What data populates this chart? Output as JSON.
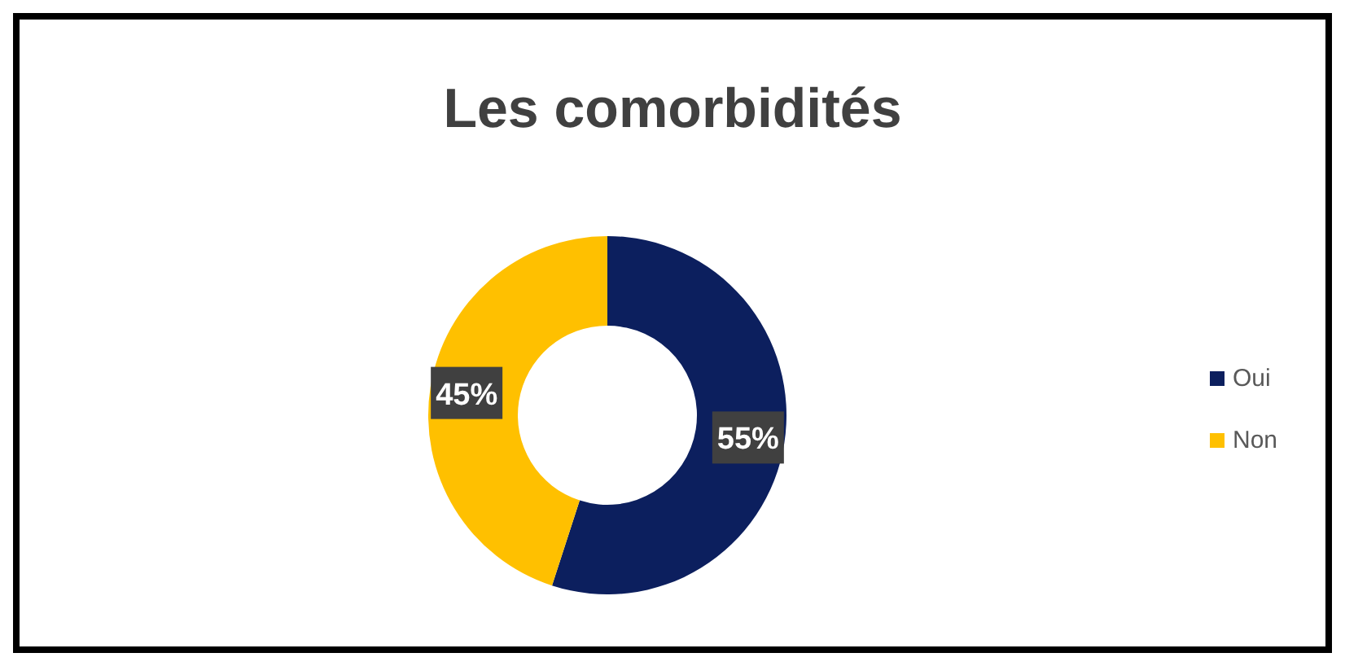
{
  "chart_data": {
    "type": "donut",
    "title": "Les comorbidités",
    "categories": [
      "Oui",
      "Non"
    ],
    "values": [
      55,
      45
    ],
    "colors": [
      "#0c1f5e",
      "#ffc000"
    ],
    "value_labels": [
      "55%",
      "45%"
    ],
    "legend": "right"
  }
}
